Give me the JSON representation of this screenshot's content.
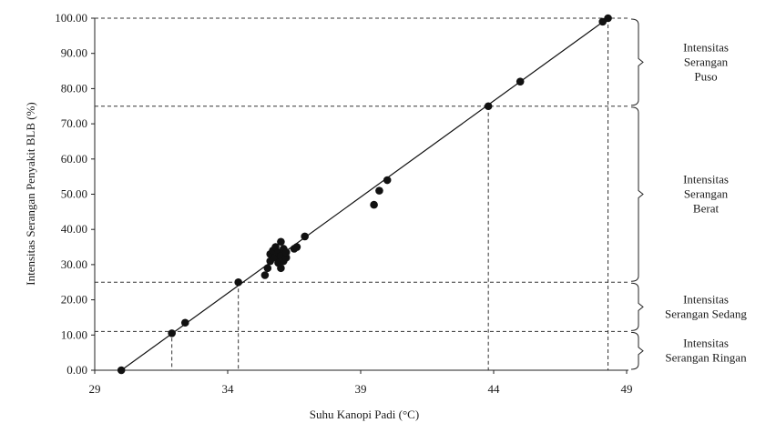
{
  "chart_data": {
    "type": "scatter",
    "title": "",
    "xlabel": "Suhu Kanopi Padi (°C)",
    "ylabel": "Intensitas Serangan Penyakit BLB  (%)",
    "xlim": [
      29,
      50
    ],
    "ylim": [
      0,
      100
    ],
    "xticks": [
      "29",
      "34",
      "39",
      "44",
      "49"
    ],
    "yticks": [
      "0.00",
      "10.00",
      "20.00",
      "30.00",
      "40.00",
      "50.00",
      "60.00",
      "70.00",
      "80.00",
      "90.00",
      "100.00"
    ],
    "grid": false,
    "points": [
      {
        "x": 30.0,
        "y": 0.0
      },
      {
        "x": 31.9,
        "y": 10.5
      },
      {
        "x": 32.4,
        "y": 13.5
      },
      {
        "x": 34.4,
        "y": 25.0
      },
      {
        "x": 35.4,
        "y": 27.0
      },
      {
        "x": 35.5,
        "y": 29.0
      },
      {
        "x": 35.6,
        "y": 31.0
      },
      {
        "x": 35.6,
        "y": 33.0
      },
      {
        "x": 35.7,
        "y": 34.0
      },
      {
        "x": 35.8,
        "y": 32.0
      },
      {
        "x": 35.8,
        "y": 35.0
      },
      {
        "x": 35.9,
        "y": 30.5
      },
      {
        "x": 35.9,
        "y": 33.5
      },
      {
        "x": 36.0,
        "y": 29.0
      },
      {
        "x": 36.0,
        "y": 32.5
      },
      {
        "x": 36.0,
        "y": 36.5
      },
      {
        "x": 36.1,
        "y": 31.0
      },
      {
        "x": 36.1,
        "y": 34.5
      },
      {
        "x": 36.2,
        "y": 32.0
      },
      {
        "x": 36.2,
        "y": 33.5
      },
      {
        "x": 36.5,
        "y": 34.5
      },
      {
        "x": 36.6,
        "y": 35.0
      },
      {
        "x": 36.9,
        "y": 38.0
      },
      {
        "x": 39.5,
        "y": 47.0
      },
      {
        "x": 39.7,
        "y": 51.0
      },
      {
        "x": 40.0,
        "y": 54.0
      },
      {
        "x": 43.8,
        "y": 75.0
      },
      {
        "x": 45.0,
        "y": 82.0
      },
      {
        "x": 48.1,
        "y": 99.0
      },
      {
        "x": 48.3,
        "y": 100.0
      }
    ],
    "trendline": {
      "x": [
        30.0,
        48.3
      ],
      "y": [
        0.0,
        100.0
      ]
    },
    "thresholds": [
      {
        "y": 100.0,
        "x": 48.3
      },
      {
        "y": 75.0,
        "x": 43.8
      },
      {
        "y": 25.0,
        "x": 34.4
      },
      {
        "y": 11.0,
        "x": 31.9
      }
    ],
    "categories": [
      {
        "lines": [
          "Intensitas",
          "Serangan",
          "Puso"
        ],
        "y_range": [
          75,
          100
        ]
      },
      {
        "lines": [
          "Intensitas",
          "Serangan",
          "Berat"
        ],
        "y_range": [
          25,
          75
        ]
      },
      {
        "lines": [
          "Intensitas",
          "Serangan Sedang"
        ],
        "y_range": [
          11,
          25
        ]
      },
      {
        "lines": [
          "Intensitas",
          "Serangan Ringan"
        ],
        "y_range": [
          0,
          11
        ]
      }
    ]
  }
}
